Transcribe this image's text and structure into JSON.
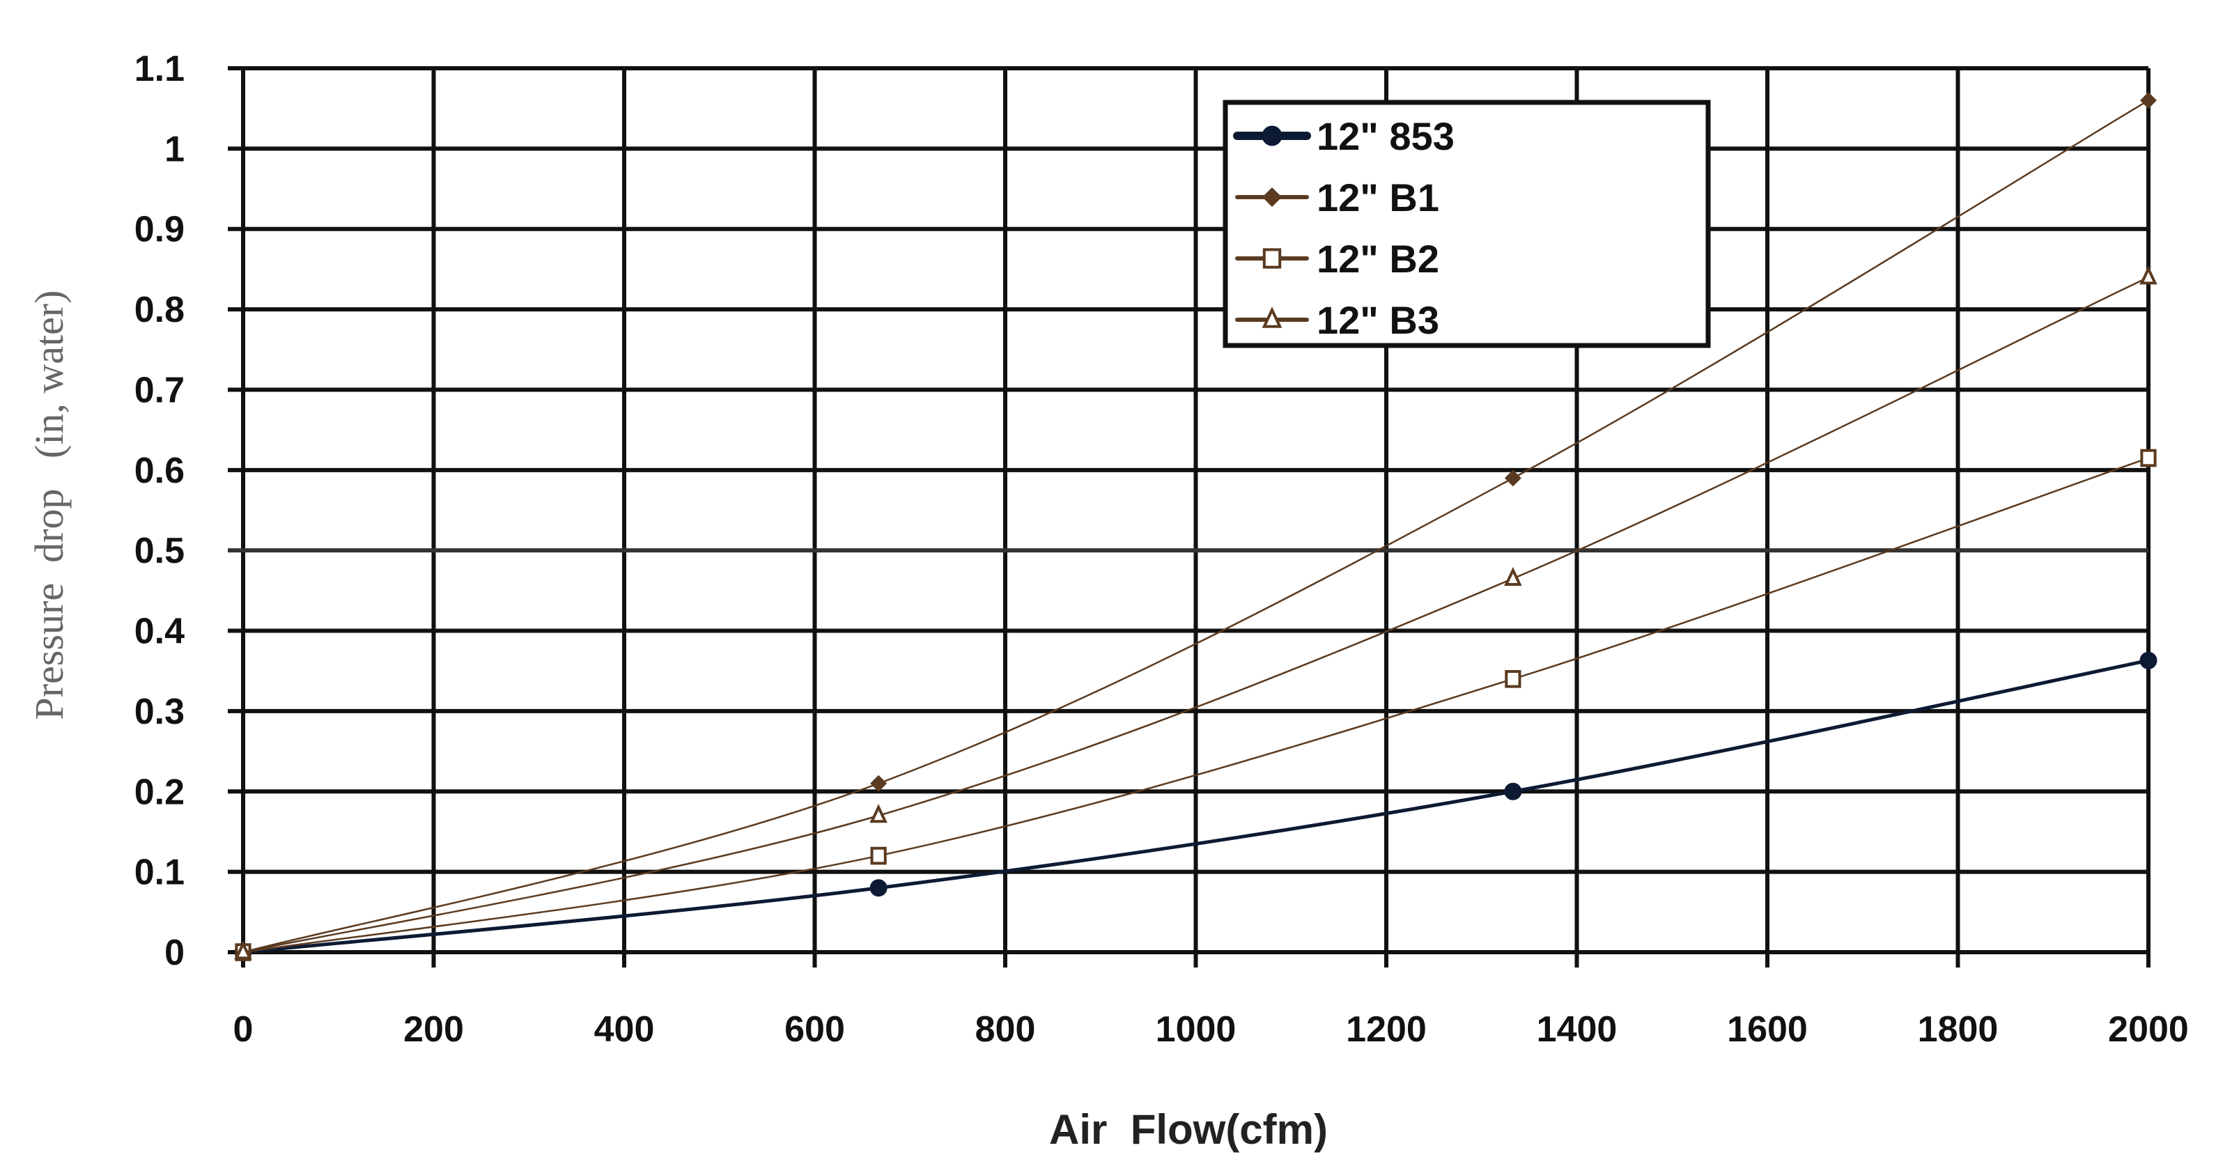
{
  "chart_data": {
    "type": "line",
    "title": "",
    "xlabel": "Air  Flow(cfm)",
    "ylabel": "Pressure  drop   (in, water)",
    "xlim": [
      0,
      2000
    ],
    "ylim": [
      0,
      1.1
    ],
    "xticks": [
      "0",
      "200",
      "400",
      "600",
      "800",
      "1000",
      "1200",
      "1400",
      "1600",
      "1800",
      "2000"
    ],
    "yticks": [
      "0",
      "0.1",
      "0.2",
      "0.3",
      "0.4",
      "0.5",
      "0.6",
      "0.7",
      "0.8",
      "0.9",
      "1",
      "1.1"
    ],
    "grid": true,
    "legend_position": "top-right",
    "series": [
      {
        "name": "12\" 853",
        "marker": "circle",
        "color": "#0d1a33",
        "width": 5,
        "x": [
          0,
          667,
          1333,
          2000
        ],
        "y": [
          0,
          0.08,
          0.2,
          0.363
        ]
      },
      {
        "name": "12\" B1",
        "marker": "diamond",
        "color": "#5a3a20",
        "width": 2.5,
        "x": [
          0,
          667,
          1333,
          2000
        ],
        "y": [
          0,
          0.21,
          0.59,
          1.06
        ]
      },
      {
        "name": "12\" B2",
        "marker": "square",
        "color": "#5a3a20",
        "width": 2.5,
        "x": [
          0,
          667,
          1333,
          2000
        ],
        "y": [
          0,
          0.12,
          0.34,
          0.615
        ]
      },
      {
        "name": "12\" B3",
        "marker": "triangle",
        "color": "#5a3a20",
        "width": 2.5,
        "x": [
          0,
          667,
          1333,
          2000
        ],
        "y": [
          0,
          0.17,
          0.465,
          0.84
        ]
      }
    ]
  }
}
